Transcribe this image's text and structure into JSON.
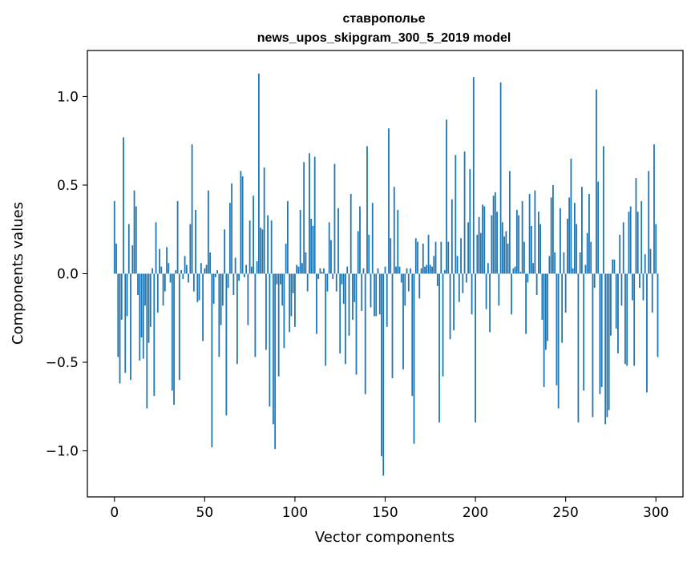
{
  "chart_data": {
    "type": "bar",
    "title": "ставрополье",
    "subtitle": "news_upos_skipgram_300_5_2019 model",
    "xlabel": "Vector components",
    "ylabel": "Components values",
    "xlim": [
      -15,
      315
    ],
    "ylim": [
      -1.26,
      1.26
    ],
    "xticks": [
      0,
      50,
      100,
      150,
      200,
      250,
      300
    ],
    "xtick_labels": [
      "0",
      "50",
      "100",
      "150",
      "200",
      "250",
      "300"
    ],
    "yticks": [
      -1.0,
      -0.5,
      0.0,
      0.5,
      1.0
    ],
    "ytick_labels": [
      "−1.0",
      "−0.5",
      "0.0",
      "0.5",
      "1.0"
    ],
    "bar_color": "#1f77b4",
    "grid": false,
    "series": [
      {
        "values": [
          0.41,
          0.17,
          -0.47,
          -0.62,
          -0.26,
          0.77,
          -0.56,
          -0.24,
          0.28,
          -0.6,
          0.16,
          0.47,
          0.38,
          -0.12,
          -0.49,
          -0.36,
          -0.48,
          -0.18,
          -0.76,
          -0.39,
          -0.3,
          0.03,
          -0.69,
          0.29,
          -0.22,
          0.14,
          0.04,
          -0.18,
          -0.1,
          0.15,
          0.06,
          -0.05,
          -0.66,
          -0.74,
          0.02,
          0.41,
          -0.6,
          0.02,
          -0.03,
          0.1,
          0.05,
          -0.05,
          0.28,
          0.73,
          -0.1,
          0.36,
          -0.16,
          -0.15,
          0.06,
          -0.38,
          0.03,
          0.05,
          0.47,
          0.12,
          -0.98,
          -0.17,
          -0.02,
          0.02,
          -0.47,
          -0.29,
          -0.18,
          0.25,
          -0.8,
          -0.08,
          0.4,
          0.51,
          -0.12,
          0.09,
          -0.51,
          -0.04,
          0.58,
          0.55,
          -0.02,
          0.05,
          -0.29,
          0.3,
          0.04,
          0.44,
          -0.47,
          0.07,
          1.13,
          0.26,
          0.25,
          0.6,
          -0.43,
          0.33,
          -0.75,
          0.3,
          -0.85,
          -0.99,
          -0.06,
          -0.58,
          -0.06,
          -0.18,
          -0.42,
          0.17,
          0.41,
          -0.33,
          -0.24,
          -0.11,
          -0.3,
          0.05,
          0.04,
          0.36,
          0.06,
          0.63,
          0.12,
          -0.1,
          0.68,
          0.31,
          0.27,
          0.66,
          -0.34,
          -0.03,
          0.03,
          0.01,
          0.03,
          -0.52,
          -0.1,
          0.29,
          0.19,
          -0.03,
          0.62,
          -0.1,
          0.37,
          -0.45,
          -0.06,
          -0.17,
          -0.51,
          0.04,
          -0.35,
          0.45,
          -0.26,
          -0.16,
          -0.57,
          0.24,
          0.38,
          -0.21,
          0.03,
          -0.68,
          0.72,
          0.22,
          -0.19,
          0.4,
          -0.24,
          -0.24,
          0.03,
          -0.23,
          -1.03,
          -1.14,
          0.04,
          -0.3,
          0.82,
          0.2,
          -0.59,
          0.49,
          0.04,
          0.36,
          0.04,
          -0.05,
          -0.54,
          -0.18,
          0.03,
          -0.1,
          0.03,
          -0.69,
          -0.96,
          0.2,
          0.18,
          -0.14,
          0.03,
          0.17,
          0.04,
          0.05,
          0.22,
          0.05,
          0.04,
          0.1,
          0.18,
          -0.07,
          -0.84,
          0.18,
          -0.58,
          0.02,
          0.87,
          0.18,
          -0.37,
          0.42,
          -0.32,
          0.67,
          0.1,
          -0.16,
          0.2,
          -0.11,
          0.69,
          -0.05,
          0.29,
          0.59,
          -0.23,
          1.11,
          -0.84,
          0.22,
          0.32,
          0.23,
          0.39,
          0.38,
          -0.2,
          0.06,
          -0.33,
          0.33,
          0.44,
          0.46,
          0.35,
          -0.18,
          1.08,
          0.29,
          0.21,
          0.24,
          0.17,
          0.58,
          -0.23,
          0.03,
          0.04,
          0.36,
          0.33,
          0.01,
          0.41,
          0.18,
          -0.34,
          -0.05,
          0.45,
          0.27,
          0.06,
          0.47,
          -0.12,
          0.35,
          0.28,
          -0.26,
          -0.64,
          -0.43,
          -0.38,
          0.1,
          0.43,
          0.5,
          0.12,
          -0.63,
          -0.76,
          0.37,
          -0.39,
          0.12,
          -0.22,
          0.31,
          0.43,
          0.65,
          0.03,
          0.4,
          0.28,
          -0.84,
          0.12,
          0.49,
          -0.66,
          0.05,
          0.23,
          0.45,
          0.18,
          -0.81,
          -0.08,
          1.04,
          0.52,
          -0.68,
          -0.64,
          0.72,
          -0.85,
          -0.81,
          -0.77,
          -0.35,
          0.08,
          0.08,
          -0.31,
          -0.45,
          0.22,
          -0.18,
          0.29,
          -0.51,
          -0.52,
          0.35,
          0.38,
          -0.15,
          -0.52,
          0.54,
          0.35,
          -0.08,
          0.41,
          -0.15,
          0.11,
          -0.67,
          0.58,
          0.14,
          -0.22,
          0.73,
          0.28,
          -0.47
        ]
      }
    ]
  }
}
